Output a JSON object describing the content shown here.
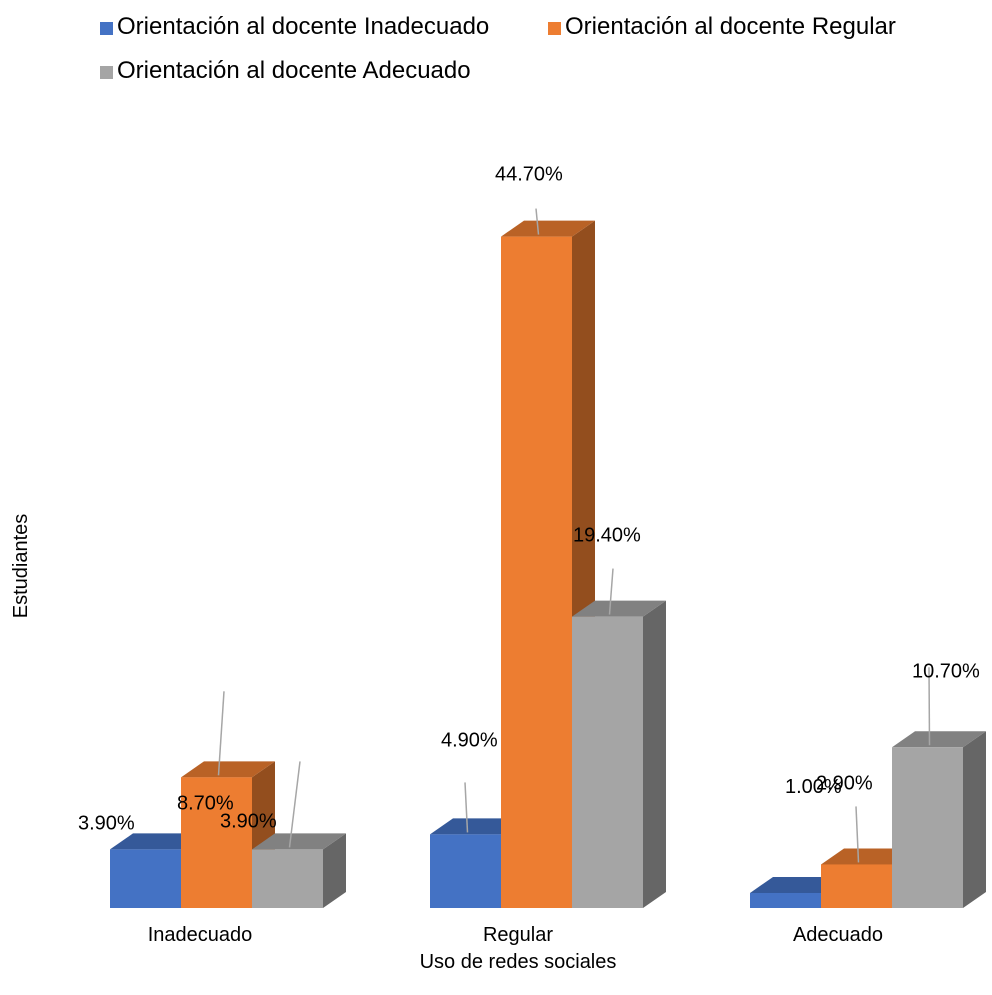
{
  "chart_data": {
    "type": "bar",
    "categories": [
      "Inadecuado",
      "Regular",
      "Adecuado"
    ],
    "series": [
      {
        "name": "Orientación al docente  Inadecuado",
        "values": [
          3.9,
          4.9,
          1.0
        ],
        "labels": [
          "3.90%",
          "4.90%",
          "1.00%"
        ],
        "color": "#4472C4"
      },
      {
        "name": "Orientación al docente  Regular",
        "values": [
          8.7,
          44.7,
          2.9
        ],
        "labels": [
          "8.70%",
          "44.70%",
          "2.90%"
        ],
        "color": "#ED7D31"
      },
      {
        "name": "Orientación al docente  Adecuado",
        "values": [
          3.9,
          19.4,
          10.7
        ],
        "labels": [
          "3.90%",
          "19.40%",
          "10.70%"
        ],
        "color": "#A5A5A5"
      }
    ],
    "xlabel": "Uso de redes sociales",
    "ylabel": "Estudiantes",
    "ylim": [
      0,
      50
    ],
    "grid": false,
    "legend_position": "top",
    "style": "3d-clustered-column"
  }
}
